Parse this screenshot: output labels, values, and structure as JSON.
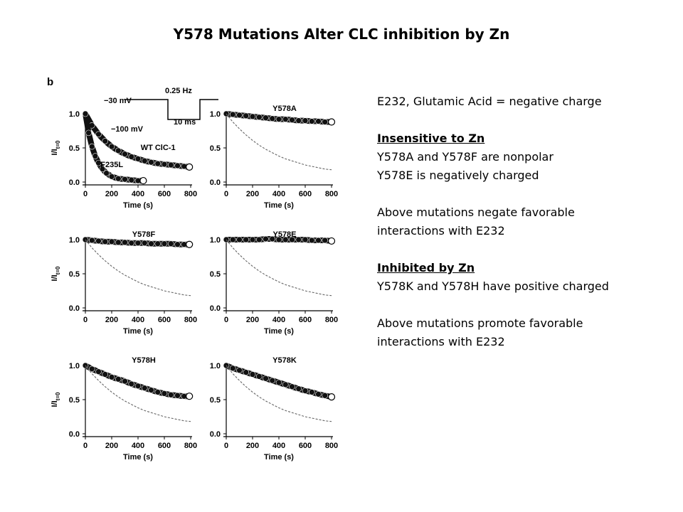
{
  "slide": {
    "title": "Y578 Mutations Alter CLC inhibition by Zn"
  },
  "notes": {
    "line1": "E232, Glutamic Acid = negative charge",
    "heading1": "Insensitive to Zn",
    "line2": "Y578A and Y578F are nonpolar",
    "line3": "Y578E is negatively charged",
    "line4": "Above mutations negate favorable",
    "line5": "interactions with E232",
    "heading2": "Inhibited by Zn",
    "line6": "Y578K and Y578H have positive charged",
    "line7": "Above mutations promote favorable",
    "line8": "interactions with E232"
  },
  "figure": {
    "panel_label": "b",
    "inset": {
      "voltage_hold": "−30 mV",
      "voltage_step": "−100 mV",
      "frequency": "0.25 Hz",
      "duration": "10 ms"
    }
  },
  "chart_data": [
    {
      "type": "scatter",
      "title": "",
      "xlabel": "Time (s)",
      "ylabel": "I/I",
      "ylabel_subscript": "t=0",
      "xlim": [
        0,
        800
      ],
      "ylim": [
        0,
        1.0
      ],
      "xticks": [
        "0",
        "200",
        "400",
        "600",
        "800"
      ],
      "yticks": [
        "0.0",
        "0.5",
        "1.0"
      ],
      "series": [
        {
          "name": "WT ClC-1",
          "style": "markers",
          "x": [
            0,
            50,
            100,
            150,
            200,
            250,
            300,
            350,
            400,
            450,
            500,
            550,
            600,
            650,
            700,
            750,
            790
          ],
          "y": [
            1.0,
            0.83,
            0.7,
            0.6,
            0.52,
            0.46,
            0.41,
            0.37,
            0.34,
            0.31,
            0.29,
            0.27,
            0.26,
            0.25,
            0.24,
            0.23,
            0.22
          ]
        },
        {
          "name": "F235L",
          "style": "markers",
          "x": [
            0,
            25,
            50,
            75,
            100,
            130,
            160,
            200,
            250,
            300,
            350,
            400,
            440
          ],
          "y": [
            1.0,
            0.72,
            0.52,
            0.38,
            0.28,
            0.19,
            0.13,
            0.08,
            0.05,
            0.04,
            0.03,
            0.02,
            0.02
          ]
        }
      ]
    },
    {
      "type": "scatter",
      "title": "Y578A",
      "xlabel": "Time (s)",
      "ylabel": "",
      "xlim": [
        0,
        800
      ],
      "ylim": [
        0,
        1.0
      ],
      "xticks": [
        "0",
        "200",
        "400",
        "600",
        "800"
      ],
      "yticks": [
        "0.0",
        "0.5",
        "1.0"
      ],
      "series": [
        {
          "name": "Y578A",
          "style": "markers",
          "x": [
            0,
            50,
            100,
            150,
            200,
            250,
            300,
            350,
            400,
            450,
            500,
            550,
            600,
            650,
            700,
            750,
            800
          ],
          "y": [
            1.0,
            0.99,
            0.98,
            0.97,
            0.96,
            0.95,
            0.94,
            0.93,
            0.92,
            0.92,
            0.91,
            0.9,
            0.9,
            0.89,
            0.89,
            0.88,
            0.88
          ]
        },
        {
          "name": "",
          "style": "dashed",
          "x": [
            0,
            50,
            100,
            150,
            200,
            250,
            300,
            350,
            400,
            450,
            500,
            550,
            600,
            650,
            700,
            750,
            800
          ],
          "y": [
            1.0,
            0.88,
            0.78,
            0.69,
            0.61,
            0.54,
            0.48,
            0.43,
            0.38,
            0.34,
            0.31,
            0.28,
            0.25,
            0.23,
            0.21,
            0.19,
            0.18
          ]
        }
      ]
    },
    {
      "type": "scatter",
      "title": "Y578F",
      "xlabel": "Time (s)",
      "ylabel": "I/I",
      "ylabel_subscript": "t=0",
      "xlim": [
        0,
        800
      ],
      "ylim": [
        0,
        1.0
      ],
      "xticks": [
        "0",
        "200",
        "400",
        "600",
        "800"
      ],
      "yticks": [
        "0.0",
        "0.5",
        "1.0"
      ],
      "series": [
        {
          "name": "Y578F",
          "style": "markers",
          "x": [
            0,
            50,
            100,
            150,
            200,
            250,
            300,
            350,
            400,
            450,
            500,
            550,
            600,
            650,
            700,
            750,
            790
          ],
          "y": [
            1.0,
            0.99,
            0.98,
            0.97,
            0.97,
            0.96,
            0.96,
            0.95,
            0.95,
            0.95,
            0.94,
            0.94,
            0.94,
            0.94,
            0.93,
            0.93,
            0.93
          ]
        },
        {
          "name": "",
          "style": "dashed",
          "x": [
            0,
            50,
            100,
            150,
            200,
            250,
            300,
            350,
            400,
            450,
            500,
            550,
            600,
            650,
            700,
            750,
            800
          ],
          "y": [
            1.0,
            0.88,
            0.78,
            0.69,
            0.61,
            0.54,
            0.48,
            0.43,
            0.38,
            0.34,
            0.31,
            0.28,
            0.25,
            0.23,
            0.21,
            0.19,
            0.18
          ]
        }
      ]
    },
    {
      "type": "scatter",
      "title": "Y578E",
      "xlabel": "Time (s)",
      "ylabel": "",
      "xlim": [
        0,
        800
      ],
      "ylim": [
        0,
        1.0
      ],
      "xticks": [
        "0",
        "200",
        "400",
        "600",
        "800"
      ],
      "yticks": [
        "0.0",
        "0.5",
        "1.0"
      ],
      "series": [
        {
          "name": "Y578E",
          "style": "markers",
          "x": [
            0,
            50,
            100,
            150,
            200,
            250,
            300,
            350,
            400,
            450,
            500,
            550,
            600,
            650,
            700,
            750,
            800
          ],
          "y": [
            1.0,
            1.0,
            1.0,
            1.0,
            1.0,
            1.0,
            1.01,
            1.01,
            1.0,
            1.0,
            1.0,
            1.0,
            1.0,
            0.99,
            0.99,
            0.99,
            0.98
          ]
        },
        {
          "name": "",
          "style": "dashed",
          "x": [
            0,
            50,
            100,
            150,
            200,
            250,
            300,
            350,
            400,
            450,
            500,
            550,
            600,
            650,
            700,
            750,
            800
          ],
          "y": [
            1.0,
            0.88,
            0.78,
            0.69,
            0.61,
            0.54,
            0.48,
            0.43,
            0.38,
            0.34,
            0.31,
            0.28,
            0.25,
            0.23,
            0.21,
            0.19,
            0.18
          ]
        }
      ]
    },
    {
      "type": "scatter",
      "title": "Y578H",
      "xlabel": "Time (s)",
      "ylabel": "I/I",
      "ylabel_subscript": "t=0",
      "xlim": [
        0,
        800
      ],
      "ylim": [
        0,
        1.0
      ],
      "xticks": [
        "0",
        "200",
        "400",
        "600",
        "800"
      ],
      "yticks": [
        "0.0",
        "0.5",
        "1.0"
      ],
      "series": [
        {
          "name": "Y578H",
          "style": "markers",
          "x": [
            0,
            50,
            100,
            150,
            200,
            250,
            300,
            350,
            400,
            450,
            500,
            550,
            600,
            650,
            700,
            750,
            790
          ],
          "y": [
            1.0,
            0.95,
            0.91,
            0.87,
            0.83,
            0.8,
            0.77,
            0.73,
            0.7,
            0.67,
            0.64,
            0.61,
            0.59,
            0.57,
            0.56,
            0.55,
            0.55
          ]
        },
        {
          "name": "",
          "style": "dashed",
          "x": [
            0,
            50,
            100,
            150,
            200,
            250,
            300,
            350,
            400,
            450,
            500,
            550,
            600,
            650,
            700,
            750,
            800
          ],
          "y": [
            1.0,
            0.88,
            0.78,
            0.69,
            0.61,
            0.54,
            0.48,
            0.43,
            0.38,
            0.34,
            0.31,
            0.28,
            0.25,
            0.23,
            0.21,
            0.19,
            0.18
          ]
        }
      ]
    },
    {
      "type": "scatter",
      "title": "Y578K",
      "xlabel": "Time (s)",
      "ylabel": "",
      "xlim": [
        0,
        800
      ],
      "ylim": [
        0,
        1.0
      ],
      "xticks": [
        "0",
        "200",
        "400",
        "600",
        "800"
      ],
      "yticks": [
        "0.0",
        "0.5",
        "1.0"
      ],
      "series": [
        {
          "name": "Y578K",
          "style": "markers",
          "x": [
            0,
            50,
            100,
            150,
            200,
            250,
            300,
            350,
            400,
            450,
            500,
            550,
            600,
            650,
            700,
            750,
            800
          ],
          "y": [
            1.0,
            0.96,
            0.93,
            0.9,
            0.87,
            0.84,
            0.81,
            0.78,
            0.75,
            0.72,
            0.69,
            0.66,
            0.63,
            0.61,
            0.58,
            0.56,
            0.54
          ]
        },
        {
          "name": "",
          "style": "dashed",
          "x": [
            0,
            50,
            100,
            150,
            200,
            250,
            300,
            350,
            400,
            450,
            500,
            550,
            600,
            650,
            700,
            750,
            800
          ],
          "y": [
            1.0,
            0.88,
            0.78,
            0.69,
            0.61,
            0.54,
            0.48,
            0.43,
            0.38,
            0.34,
            0.31,
            0.28,
            0.25,
            0.23,
            0.21,
            0.19,
            0.18
          ]
        }
      ]
    }
  ]
}
